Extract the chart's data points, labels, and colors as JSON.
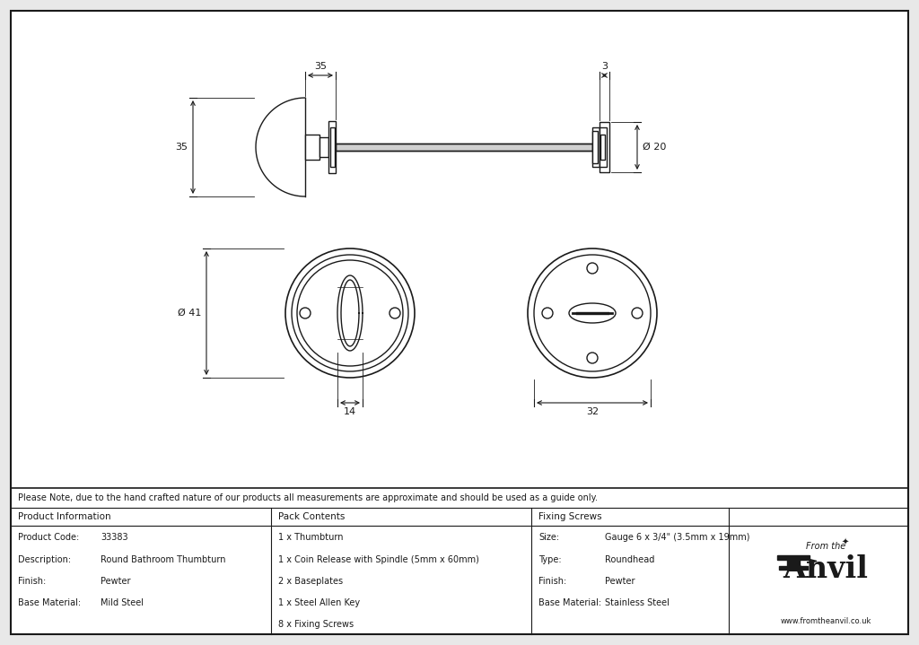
{
  "bg_color": "#e8e8e8",
  "drawing_bg": "#ffffff",
  "line_color": "#1a1a1a",
  "note_text": "Please Note, due to the hand crafted nature of our products all measurements are approximate and should be used as a guide only.",
  "product_info": {
    "header": "Product Information",
    "rows": [
      [
        "Product Code:",
        "33383"
      ],
      [
        "Description:",
        "Round Bathroom Thumbturn"
      ],
      [
        "Finish:",
        "Pewter"
      ],
      [
        "Base Material:",
        "Mild Steel"
      ]
    ]
  },
  "pack_contents": {
    "header": "Pack Contents",
    "items": [
      "1 x Thumbturn",
      "1 x Coin Release with Spindle (5mm x 60mm)",
      "2 x Baseplates",
      "1 x Steel Allen Key",
      "8 x Fixing Screws"
    ]
  },
  "fixing_screws": {
    "header": "Fixing Screws",
    "rows": [
      [
        "Size:",
        "Gauge 6 x 3/4\" (3.5mm x 19mm)"
      ],
      [
        "Type:",
        "Roundhead"
      ],
      [
        "Finish:",
        "Pewter"
      ],
      [
        "Base Material:",
        "Stainless Steel"
      ]
    ]
  },
  "dim_35_top": "35",
  "dim_3_top": "3",
  "dim_35_side": "35",
  "dim_20_right": "Ø 20",
  "dim_41": "Ø 41",
  "dim_14": "14",
  "dim_32": "32"
}
